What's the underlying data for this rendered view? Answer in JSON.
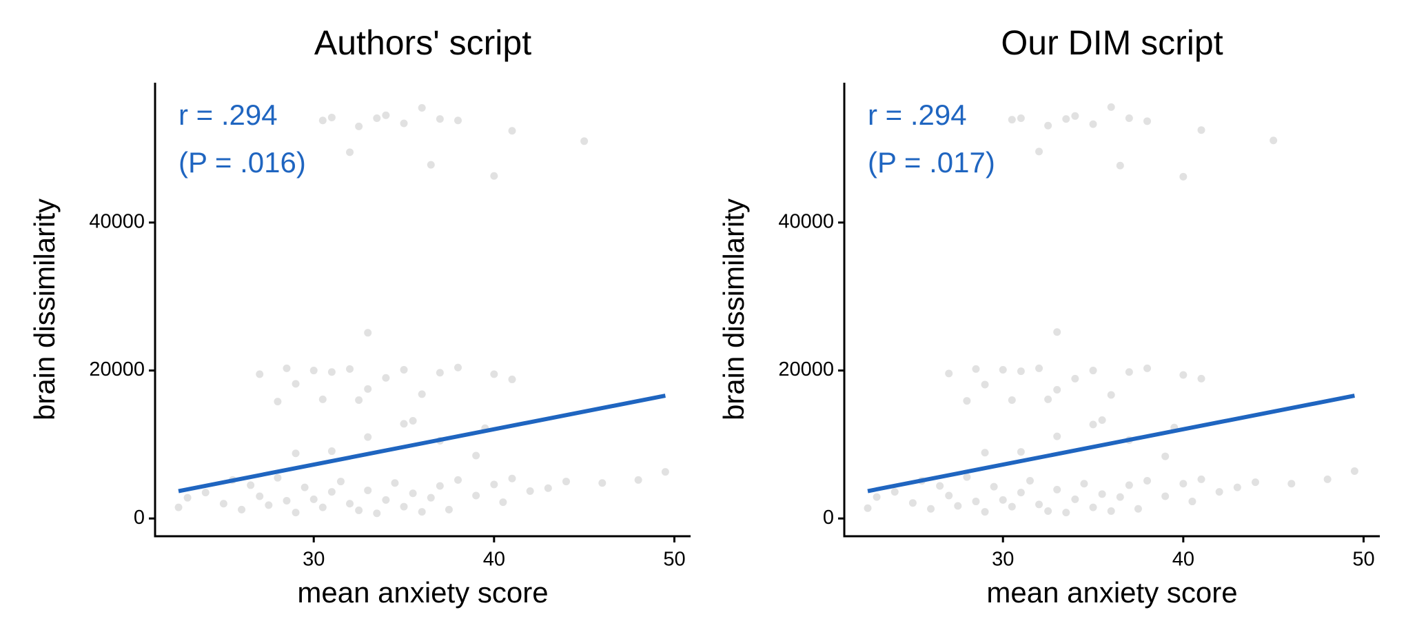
{
  "chart_data": [
    {
      "type": "scatter",
      "title": "Authors' script",
      "xlabel": "mean anxiety score",
      "ylabel": "brain dissimilarity",
      "annotations": [
        "r = .294",
        "(P = .016)"
      ],
      "annotation_color": "#1f65c0",
      "xlim": [
        21.2,
        50.9
      ],
      "ylim": [
        -2400,
        58900
      ],
      "xticks": [
        30,
        40,
        50
      ],
      "yticks": [
        0,
        20000,
        40000
      ],
      "points": {
        "color": "#d4d4d4",
        "x": [
          22.5,
          23,
          24,
          25,
          25.5,
          26,
          26.5,
          27,
          27.5,
          28,
          28.5,
          29,
          29.5,
          30,
          30.5,
          31,
          31.5,
          32,
          32.5,
          33,
          33.5,
          34,
          34.5,
          35,
          35.5,
          36,
          36.5,
          37,
          37.5,
          38,
          39,
          40,
          40.5,
          41,
          42,
          43,
          44,
          46,
          48,
          49.5,
          27,
          28,
          28.5,
          29,
          30,
          30.5,
          31,
          32,
          32.5,
          33,
          33,
          34,
          35,
          35.5,
          36,
          37,
          38,
          39.5,
          40,
          41,
          30.5,
          31,
          32,
          32.5,
          33.5,
          34,
          35,
          36,
          36.5,
          37,
          38,
          40,
          41,
          45,
          29,
          31,
          33,
          35,
          37,
          39
        ],
        "values": [
          1500,
          2800,
          3500,
          2000,
          5200,
          1200,
          4500,
          3000,
          1800,
          5500,
          2400,
          800,
          4200,
          2600,
          1500,
          3600,
          5000,
          2000,
          1100,
          3800,
          700,
          2500,
          4800,
          1600,
          3400,
          900,
          2800,
          4400,
          1200,
          5200,
          3100,
          4600,
          2200,
          5400,
          3700,
          4100,
          5000,
          4800,
          5200,
          6300,
          19500,
          15800,
          20300,
          18200,
          20000,
          16100,
          19800,
          20200,
          16000,
          17500,
          25100,
          19000,
          20100,
          13200,
          16800,
          19700,
          20400,
          12200,
          19500,
          18800,
          53800,
          54200,
          49500,
          53000,
          54100,
          54500,
          53400,
          55500,
          47800,
          54000,
          53800,
          46300,
          52400,
          51000,
          8800,
          9100,
          11000,
          12800,
          10500,
          8500
        ]
      },
      "fit": {
        "color": "#1f65c0",
        "x": [
          22.5,
          49.5
        ],
        "values": [
          3700,
          16600
        ]
      }
    },
    {
      "type": "scatter",
      "title": "Our DIM script",
      "xlabel": "mean anxiety score",
      "ylabel": "brain dissimilarity",
      "annotations": [
        "r = .294",
        "(P = .017)"
      ],
      "annotation_color": "#1f65c0",
      "xlim": [
        21.2,
        50.9
      ],
      "ylim": [
        -2400,
        58900
      ],
      "xticks": [
        30,
        40,
        50
      ],
      "yticks": [
        0,
        20000,
        40000
      ],
      "points": {
        "color": "#d4d4d4",
        "x": [
          22.5,
          23,
          24,
          25,
          25.5,
          26,
          26.5,
          27,
          27.5,
          28,
          28.5,
          29,
          29.5,
          30,
          30.5,
          31,
          31.5,
          32,
          32.5,
          33,
          33.5,
          34,
          34.5,
          35,
          35.5,
          36,
          36.5,
          37,
          37.5,
          38,
          39,
          40,
          40.5,
          41,
          42,
          43,
          44,
          46,
          48,
          49.5,
          27,
          28,
          28.5,
          29,
          30,
          30.5,
          31,
          32,
          32.5,
          33,
          33,
          34,
          35,
          35.5,
          36,
          37,
          38,
          39.5,
          40,
          41,
          30.5,
          31,
          32,
          32.5,
          33.5,
          34,
          35,
          36,
          36.5,
          37,
          38,
          40,
          41,
          45,
          29,
          31,
          33,
          35,
          37,
          39
        ],
        "values": [
          1400,
          2900,
          3600,
          2100,
          5100,
          1300,
          4400,
          3100,
          1700,
          5600,
          2300,
          900,
          4300,
          2500,
          1600,
          3500,
          5100,
          1900,
          1000,
          3900,
          800,
          2600,
          4700,
          1500,
          3300,
          1000,
          2900,
          4500,
          1300,
          5100,
          3000,
          4700,
          2300,
          5300,
          3600,
          4200,
          4900,
          4700,
          5300,
          6400,
          19600,
          15900,
          20200,
          18100,
          20100,
          16000,
          19900,
          20300,
          16100,
          17400,
          25200,
          18900,
          20000,
          13300,
          16700,
          19800,
          20300,
          12300,
          19400,
          18900,
          53900,
          54100,
          49600,
          53100,
          54000,
          54400,
          53300,
          55600,
          47700,
          54100,
          53700,
          46200,
          52500,
          51100,
          8900,
          9000,
          11100,
          12700,
          10600,
          8400
        ]
      },
      "fit": {
        "color": "#1f65c0",
        "x": [
          22.5,
          49.5
        ],
        "values": [
          3700,
          16600
        ]
      }
    }
  ]
}
